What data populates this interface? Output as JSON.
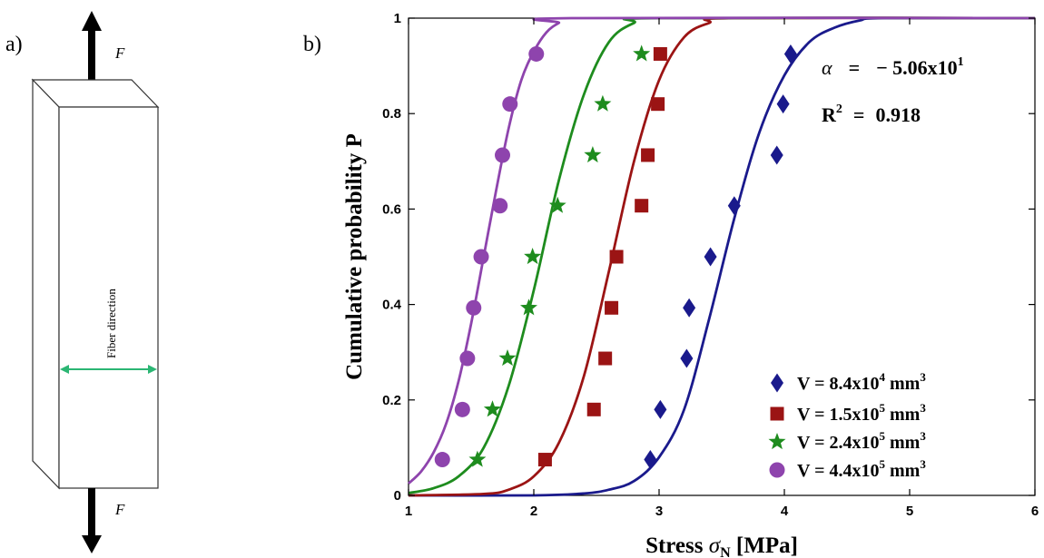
{
  "figure": {
    "panel_a_label": "a)",
    "panel_b_label": "b)"
  },
  "schematic": {
    "force_top": "F",
    "force_bottom": "F",
    "fiber_label": "Fiber direction",
    "fiber_color": "#2bb673"
  },
  "annotations": {
    "alpha_symbol": "α",
    "alpha_eq": "=",
    "alpha_value": "− 5.06x10",
    "alpha_exp": "1",
    "r2_symbol": "R",
    "r2_exp": "2",
    "r2_eq": "=",
    "r2_value": "0.918"
  },
  "chart_data": {
    "type": "scatter",
    "title": "",
    "xlabel_main": "Stress ",
    "xlabel_sigma": "σ",
    "xlabel_sub": "N",
    "xlabel_unit": " [MPa]",
    "ylabel": "Cumulative probability P",
    "xlim": [
      1,
      6
    ],
    "ylim": [
      0,
      1
    ],
    "xticks": [
      1,
      2,
      3,
      4,
      5,
      6
    ],
    "xtick_labels": [
      "1",
      "2",
      "3",
      "4",
      "5",
      "6"
    ],
    "yticks": [
      0,
      0.2,
      0.4,
      0.6,
      0.8,
      1
    ],
    "ytick_labels": [
      "0",
      "0.2",
      "0.4",
      "0.6",
      "0.8",
      "1"
    ],
    "grid": false,
    "legend_position": "bottom-right",
    "series": [
      {
        "name": "V = 8.4x10^4 mm^3",
        "legend_main": "V  =  8.4x10",
        "legend_exp": "4",
        "legend_unit": " mm",
        "legend_unit_exp": "3",
        "color": "#1a1a8c",
        "marker": "diamond",
        "x": [
          2.93,
          3.01,
          3.22,
          3.24,
          3.41,
          3.6,
          3.94,
          3.99,
          4.05
        ],
        "y": [
          0.075,
          0.18,
          0.287,
          0.393,
          0.5,
          0.607,
          0.713,
          0.82,
          0.925
        ],
        "fit": [
          [
            1.0,
            0.0
          ],
          [
            2.0,
            0.0
          ],
          [
            2.4,
            0.004
          ],
          [
            2.6,
            0.012
          ],
          [
            2.8,
            0.03
          ],
          [
            3.0,
            0.08
          ],
          [
            3.2,
            0.18
          ],
          [
            3.4,
            0.37
          ],
          [
            3.6,
            0.58
          ],
          [
            3.8,
            0.76
          ],
          [
            4.0,
            0.88
          ],
          [
            4.2,
            0.95
          ],
          [
            4.4,
            0.98
          ],
          [
            4.6,
            0.995
          ],
          [
            4.8,
            1.0
          ],
          [
            6.0,
            1.0
          ]
        ]
      },
      {
        "name": "V = 1.5x10^5 mm^3",
        "legend_main": "V  =  1.5x10",
        "legend_exp": "5",
        "legend_unit": " mm",
        "legend_unit_exp": "3",
        "color": "#9b1414",
        "marker": "square",
        "x": [
          2.09,
          2.48,
          2.57,
          2.62,
          2.66,
          2.86,
          2.91,
          2.99,
          3.01
        ],
        "y": [
          0.075,
          0.18,
          0.287,
          0.393,
          0.5,
          0.607,
          0.713,
          0.82,
          0.925
        ],
        "fit": [
          [
            1.0,
            0.0
          ],
          [
            1.6,
            0.003
          ],
          [
            1.8,
            0.012
          ],
          [
            2.0,
            0.04
          ],
          [
            2.2,
            0.11
          ],
          [
            2.4,
            0.25
          ],
          [
            2.6,
            0.47
          ],
          [
            2.8,
            0.7
          ],
          [
            3.0,
            0.87
          ],
          [
            3.2,
            0.96
          ],
          [
            3.4,
            0.99
          ],
          [
            3.6,
            1.0
          ],
          [
            6.0,
            1.0
          ]
        ]
      },
      {
        "name": "V = 2.4x10^5 mm^3",
        "legend_main": "V  =  2.4x10",
        "legend_exp": "5",
        "legend_unit": " mm",
        "legend_unit_exp": "3",
        "color": "#1e8c1e",
        "marker": "star",
        "x": [
          1.55,
          1.67,
          1.79,
          1.96,
          1.99,
          2.19,
          2.47,
          2.55,
          2.86
        ],
        "y": [
          0.075,
          0.18,
          0.287,
          0.393,
          0.5,
          0.607,
          0.713,
          0.82,
          0.925
        ],
        "fit": [
          [
            1.0,
            0.005
          ],
          [
            1.2,
            0.015
          ],
          [
            1.4,
            0.04
          ],
          [
            1.6,
            0.1
          ],
          [
            1.8,
            0.23
          ],
          [
            2.0,
            0.43
          ],
          [
            2.2,
            0.66
          ],
          [
            2.4,
            0.84
          ],
          [
            2.6,
            0.95
          ],
          [
            2.8,
            0.99
          ],
          [
            3.0,
            1.0
          ],
          [
            6.0,
            1.0
          ]
        ]
      },
      {
        "name": "V = 4.4x10^5 mm^3",
        "legend_main": "V  =  4.4x10",
        "legend_exp": "5",
        "legend_unit": " mm",
        "legend_unit_exp": "3",
        "color": "#8e44ad",
        "marker": "circle",
        "x": [
          1.27,
          1.43,
          1.47,
          1.52,
          1.58,
          1.73,
          1.75,
          1.81,
          2.02
        ],
        "y": [
          0.075,
          0.18,
          0.287,
          0.393,
          0.5,
          0.607,
          0.713,
          0.82,
          0.925
        ],
        "fit": [
          [
            1.0,
            0.025
          ],
          [
            1.1,
            0.05
          ],
          [
            1.2,
            0.09
          ],
          [
            1.3,
            0.15
          ],
          [
            1.4,
            0.24
          ],
          [
            1.5,
            0.36
          ],
          [
            1.6,
            0.5
          ],
          [
            1.7,
            0.64
          ],
          [
            1.8,
            0.77
          ],
          [
            1.9,
            0.87
          ],
          [
            2.0,
            0.93
          ],
          [
            2.1,
            0.97
          ],
          [
            2.2,
            0.99
          ],
          [
            2.3,
            1.0
          ],
          [
            6.0,
            1.0
          ]
        ]
      }
    ]
  }
}
